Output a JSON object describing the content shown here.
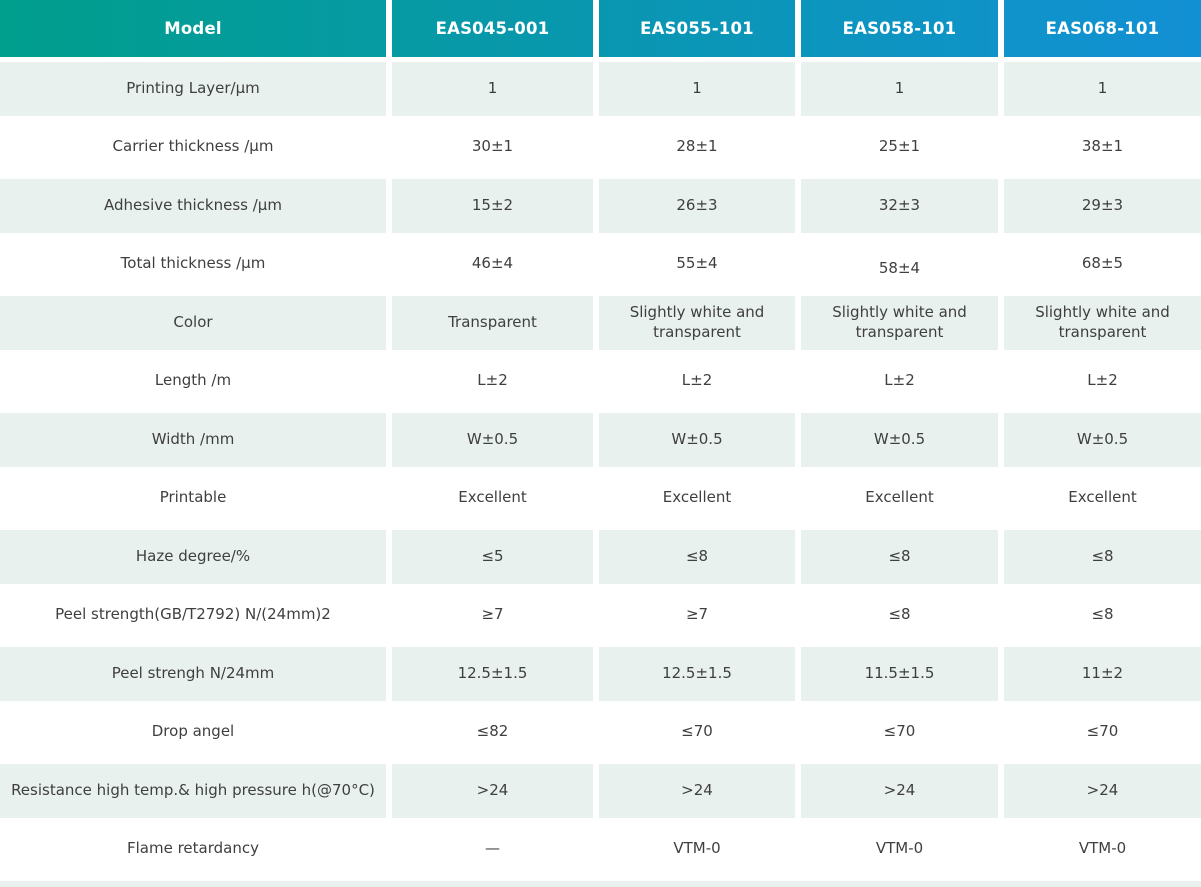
{
  "colors": {
    "header_gradient_start": "#009e8c",
    "header_gradient_end": "#1290d4",
    "shaded_row_bg": "#e8f1ee",
    "row_bg": "#ffffff",
    "header_text": "#ffffff",
    "body_text": "#3f3f3f"
  },
  "chart_data": {
    "type": "table",
    "title": "",
    "columns": [
      "Model",
      "EAS045-001",
      "EAS055-101",
      "EAS058-101",
      "EAS068-101"
    ],
    "rows": [
      {
        "label": "Printing Layer/μm",
        "values": [
          "1",
          "1",
          "1",
          "1"
        ],
        "shaded": true
      },
      {
        "label": "Carrier thickness /μm",
        "values": [
          "30±1",
          "28±1",
          "25±1",
          "38±1"
        ],
        "shaded": false
      },
      {
        "label": "Adhesive thickness /μm",
        "values": [
          "15±2",
          "26±3",
          "32±3",
          "29±3"
        ],
        "shaded": true
      },
      {
        "label": "Total thickness /μm",
        "values": [
          "46±4",
          "55±4",
          "58±4",
          "68±5"
        ],
        "shaded": false
      },
      {
        "label": "Color",
        "values": [
          "Transparent",
          "Slightly white and transparent",
          "Slightly white and transparent",
          "Slightly white and transparent"
        ],
        "shaded": true
      },
      {
        "label": "Length /m",
        "values": [
          "L±2",
          "L±2",
          "L±2",
          "L±2"
        ],
        "shaded": false
      },
      {
        "label": "Width /mm",
        "values": [
          "W±0.5",
          "W±0.5",
          "W±0.5",
          "W±0.5"
        ],
        "shaded": true
      },
      {
        "label": "Printable",
        "values": [
          "Excellent",
          "Excellent",
          "Excellent",
          "Excellent"
        ],
        "shaded": false
      },
      {
        "label": "Haze degree/%",
        "values": [
          "≤5",
          "≤8",
          "≤8",
          "≤8"
        ],
        "shaded": true
      },
      {
        "label": "Peel strength(GB/T2792)  N/(24mm)2",
        "values": [
          "≥7",
          "≥7",
          "≤8",
          "≤8"
        ],
        "shaded": false
      },
      {
        "label": "Peel strengh N/24mm",
        "values": [
          "12.5±1.5",
          "12.5±1.5",
          "11.5±1.5",
          "11±2"
        ],
        "shaded": true
      },
      {
        "label": "Drop angel",
        "values": [
          "≤82",
          "≤70",
          "≤70",
          "≤70"
        ],
        "shaded": false
      },
      {
        "label": "Resistance high temp.& high pressure h(@70°C)",
        "values": [
          ">24",
          ">24",
          ">24",
          ">24"
        ],
        "shaded": true
      },
      {
        "label": "Flame retardancy",
        "values": [
          "—",
          "VTM-0",
          "VTM-0",
          "VTM-0"
        ],
        "shaded": false
      }
    ]
  }
}
